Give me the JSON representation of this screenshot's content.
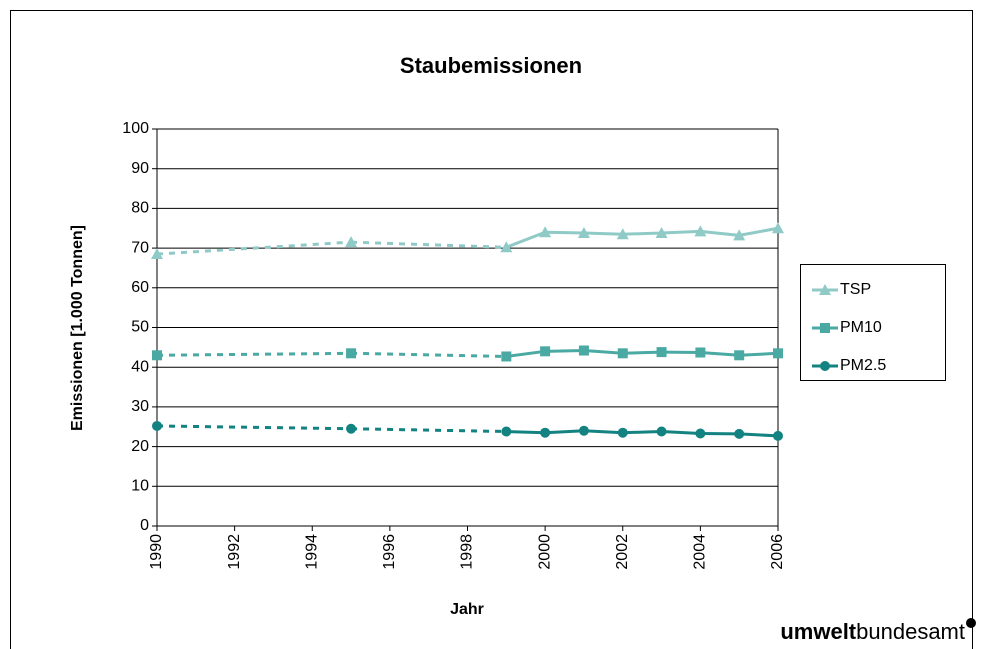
{
  "chart_data": {
    "type": "line",
    "title": "Staubemissionen",
    "xlabel": "Jahr",
    "ylabel": "Emissionen [1.000 Tonnen]",
    "x": [
      1990,
      1995,
      1999,
      2000,
      2001,
      2002,
      2003,
      2004,
      2005,
      2006
    ],
    "series": [
      {
        "name": "TSP",
        "color": "#8fcac6",
        "marker": "triangle",
        "values": [
          68.5,
          71.5,
          70.2,
          74,
          73.8,
          73.5,
          73.8,
          74.2,
          73.2,
          75
        ]
      },
      {
        "name": "PM10",
        "color": "#4aa9a3",
        "marker": "square",
        "values": [
          43,
          43.5,
          42.7,
          44,
          44.2,
          43.5,
          43.8,
          43.7,
          43,
          43.5
        ]
      },
      {
        "name": "PM2.5",
        "color": "#138382",
        "marker": "circle",
        "values": [
          25.2,
          24.5,
          23.8,
          23.5,
          24,
          23.5,
          23.8,
          23.3,
          23.2,
          22.7
        ]
      }
    ],
    "xlim": [
      1990,
      2006
    ],
    "xticks": [
      1990,
      1992,
      1994,
      1996,
      1998,
      2000,
      2002,
      2004,
      2006
    ],
    "ylim": [
      0,
      100
    ],
    "yticks": [
      0,
      10,
      20,
      30,
      40,
      50,
      60,
      70,
      80,
      90,
      100
    ],
    "grid": true,
    "legend": "right"
  },
  "logo": {
    "bold": "umwelt",
    "normal": "bundesamt"
  }
}
